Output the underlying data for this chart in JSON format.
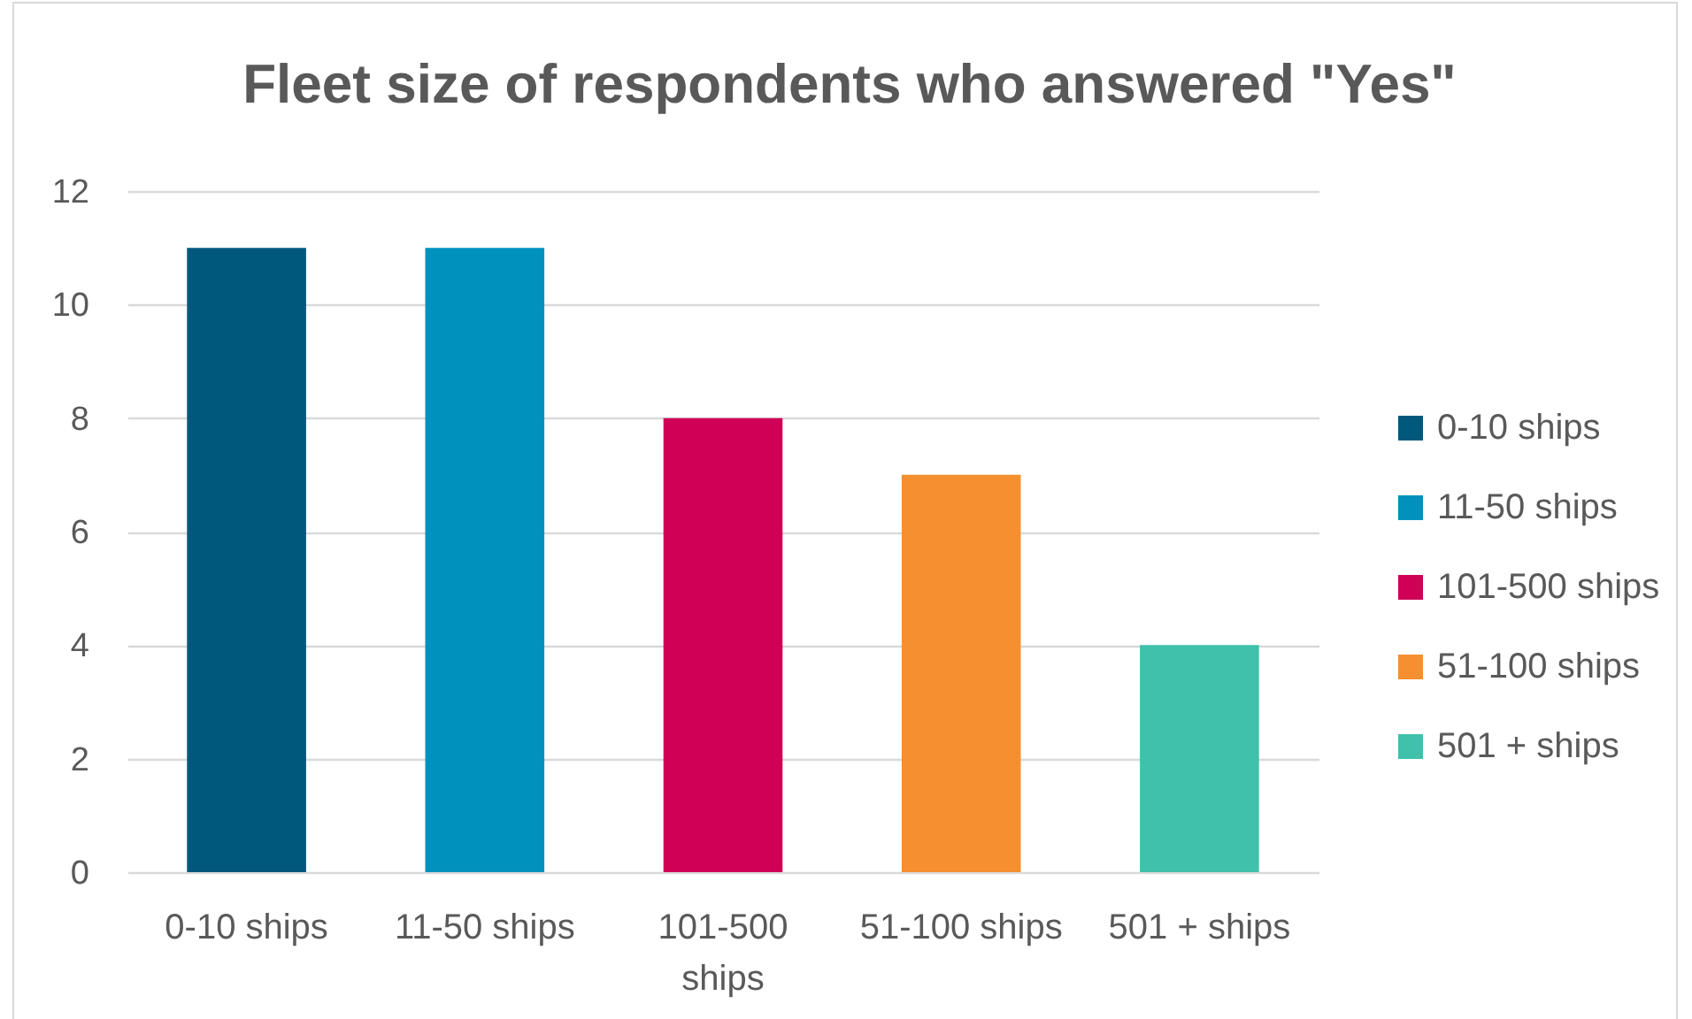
{
  "chart_data": {
    "type": "bar",
    "title": "Fleet size of respondents who answered \"Yes\"",
    "categories": [
      "0-10 ships",
      "11-50 ships",
      "101-500 ships",
      "51-100 ships",
      "501 + ships"
    ],
    "series": [
      {
        "name": "0-10 ships",
        "color": "#00587c",
        "values": [
          11,
          null,
          null,
          null,
          null
        ]
      },
      {
        "name": "11-50 ships",
        "color": "#0091bd",
        "values": [
          null,
          11,
          null,
          null,
          null
        ]
      },
      {
        "name": "101-500 ships",
        "color": "#cf0055",
        "values": [
          null,
          null,
          8,
          null,
          null
        ]
      },
      {
        "name": "51-100 ships",
        "color": "#f58f2f",
        "values": [
          null,
          null,
          null,
          7,
          null
        ]
      },
      {
        "name": "501 + ships",
        "color": "#3fc1ab",
        "values": [
          null,
          null,
          null,
          null,
          4
        ]
      }
    ],
    "ylim": [
      0,
      12
    ],
    "yticks": [
      0,
      2,
      4,
      6,
      8,
      10,
      12
    ],
    "grid": "y",
    "legend": "right"
  }
}
